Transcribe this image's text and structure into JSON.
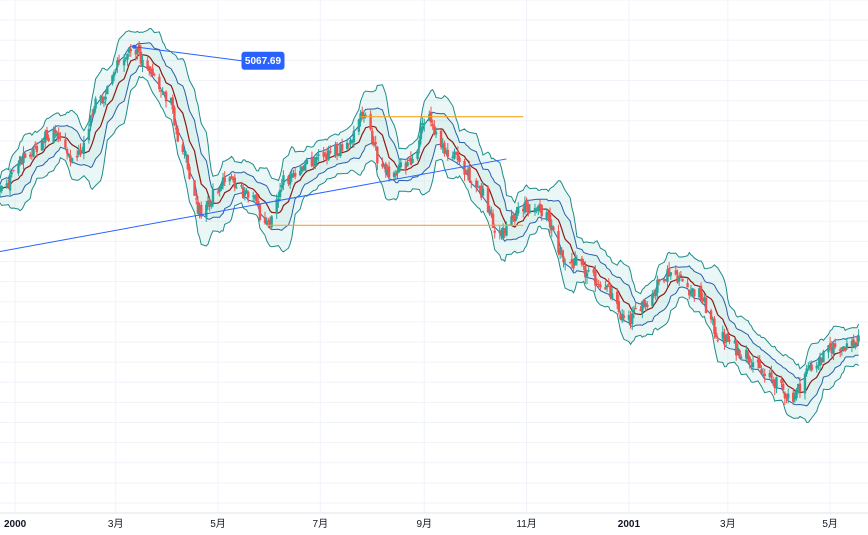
{
  "chart_data": {
    "type": "candlestick",
    "title": "",
    "xlabel": "",
    "ylabel": "",
    "x_ticks": [
      {
        "date": "2000-01-01",
        "label": "2000",
        "bold": true
      },
      {
        "date": "2000-03-01",
        "label": "3月",
        "bold": false
      },
      {
        "date": "2000-05-01",
        "label": "5月",
        "bold": false
      },
      {
        "date": "2000-07-01",
        "label": "7月",
        "bold": false
      },
      {
        "date": "2000-09-01",
        "label": "9月",
        "bold": false
      },
      {
        "date": "2000-11-01",
        "label": "11月",
        "bold": false
      },
      {
        "date": "2001-01-01",
        "label": "2001",
        "bold": true
      },
      {
        "date": "2001-03-01",
        "label": "3月",
        "bold": false
      },
      {
        "date": "2001-05-01",
        "label": "5月",
        "bold": false
      }
    ],
    "x_range": [
      "1999-12-23",
      "2001-05-20"
    ],
    "grid": true,
    "colors": {
      "up": "#26a69a",
      "down": "#ef5350",
      "band_outer": "#1e8c87",
      "band_inner": "#2a5fa8",
      "band_fill": "#26a69a",
      "basis": "#8b1a1a",
      "trendline": "#2962ff",
      "horizontal": "#f5a623",
      "label_bg": "#2962ff",
      "grid": "#f0f3fa",
      "axis_line": "#e0e3eb",
      "text": "#131722"
    },
    "anchors": [
      [
        "1999-12-23",
        4350
      ],
      [
        "2000-01-10",
        4550
      ],
      [
        "2000-01-25",
        4650
      ],
      [
        "2000-02-05",
        4500
      ],
      [
        "2000-02-20",
        4800
      ],
      [
        "2000-03-05",
        5000
      ],
      [
        "2000-03-12",
        5068
      ],
      [
        "2000-03-20",
        4950
      ],
      [
        "2000-04-01",
        4820
      ],
      [
        "2000-04-10",
        4550
      ],
      [
        "2000-04-20",
        4250
      ],
      [
        "2000-05-05",
        4400
      ],
      [
        "2000-05-20",
        4330
      ],
      [
        "2000-05-30",
        4180
      ],
      [
        "2000-06-10",
        4400
      ],
      [
        "2000-06-25",
        4500
      ],
      [
        "2000-07-15",
        4550
      ],
      [
        "2000-07-25",
        4720
      ],
      [
        "2000-08-10",
        4430
      ],
      [
        "2000-08-25",
        4500
      ],
      [
        "2000-09-02",
        4720
      ],
      [
        "2000-09-15",
        4550
      ],
      [
        "2000-10-01",
        4400
      ],
      [
        "2000-10-15",
        4150
      ],
      [
        "2000-11-01",
        4270
      ],
      [
        "2000-11-10",
        4250
      ],
      [
        "2000-11-25",
        4000
      ],
      [
        "2000-12-15",
        3900
      ],
      [
        "2000-12-31",
        3700
      ],
      [
        "2001-01-10",
        3800
      ],
      [
        "2001-01-25",
        3950
      ],
      [
        "2001-02-10",
        3850
      ],
      [
        "2001-02-25",
        3620
      ],
      [
        "2001-03-10",
        3550
      ],
      [
        "2001-03-25",
        3420
      ],
      [
        "2001-04-08",
        3330
      ],
      [
        "2001-04-20",
        3480
      ],
      [
        "2001-05-05",
        3580
      ],
      [
        "2001-05-20",
        3600
      ]
    ],
    "band": {
      "basis_period": 10,
      "inner_multiplier": 1.0,
      "outer_multiplier": 2.0
    },
    "y_range": [
      2750,
      5300
    ],
    "trendlines": [
      {
        "from": [
          "1999-12-23",
          4050
        ],
        "to": [
          "2000-10-20",
          4510
        ]
      }
    ],
    "horizontal_segments": [
      {
        "value": 4720,
        "from": "2000-07-25",
        "to": "2000-10-30"
      },
      {
        "value": 4180,
        "from": "2000-05-30",
        "to": "2000-10-30"
      }
    ],
    "price_annotation": {
      "label": "5067.69",
      "value": 5067.69,
      "anchor_date": "2000-03-12",
      "label_date": "2000-05-15"
    }
  }
}
